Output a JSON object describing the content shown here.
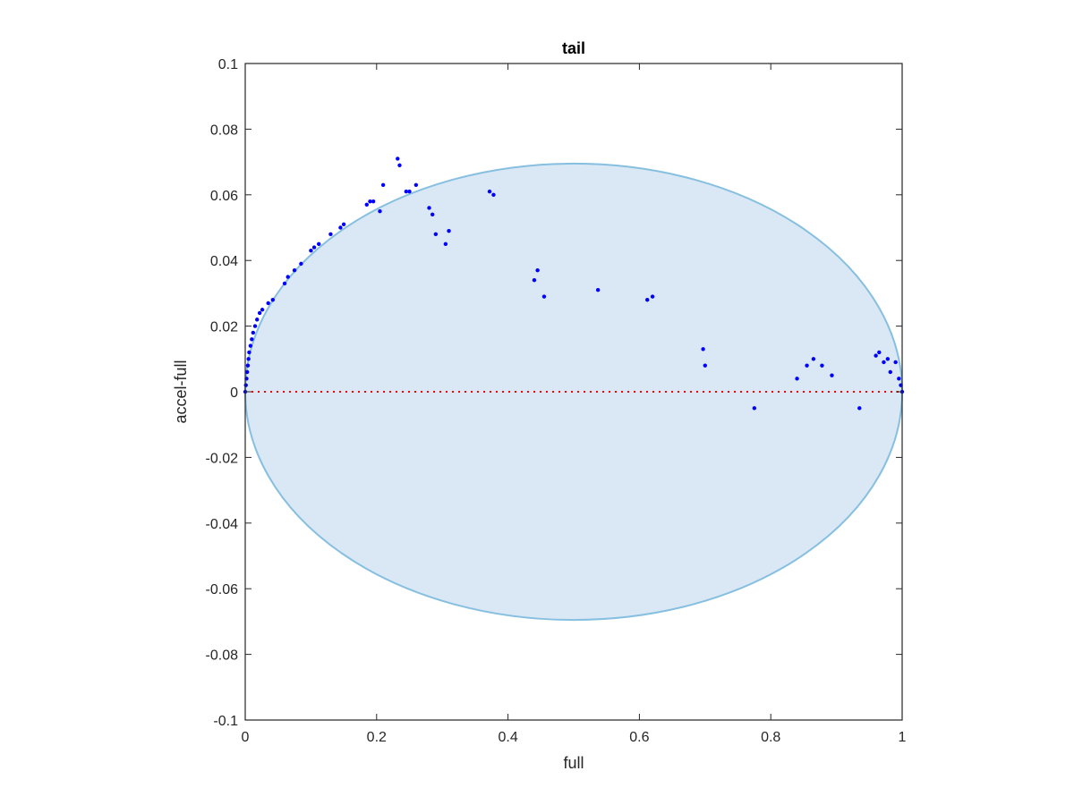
{
  "chart_data": {
    "type": "scatter",
    "title": "tail",
    "xlabel": "full",
    "ylabel": "accel-full",
    "xlim": [
      0,
      1
    ],
    "ylim": [
      -0.1,
      0.1
    ],
    "xticks": [
      0,
      0.2,
      0.4,
      0.6,
      0.8,
      1
    ],
    "xtick_labels": [
      "0",
      "0.2",
      "0.4",
      "0.6",
      "0.8",
      "1"
    ],
    "yticks": [
      -0.1,
      -0.08,
      -0.06,
      -0.04,
      -0.02,
      0,
      0.02,
      0.04,
      0.06,
      0.08,
      0.1
    ],
    "ytick_labels": [
      "-0.1",
      "-0.08",
      "-0.06",
      "-0.04",
      "-0.02",
      "0",
      "0.02",
      "0.04",
      "0.06",
      "0.08",
      "0.1"
    ],
    "grid": false,
    "reference_line": {
      "y": 0,
      "style": "dotted",
      "color": "#ff0000"
    },
    "region": {
      "shape": "ellipse",
      "center": [
        0.5,
        0.0
      ],
      "radii": [
        0.5,
        0.0695
      ],
      "fill": "#d9e8f4",
      "stroke": "#86bfe0"
    },
    "point_color": "#0000ff",
    "points": [
      [
        0.0,
        0.0
      ],
      [
        0.001,
        0.002
      ],
      [
        0.002,
        0.004
      ],
      [
        0.003,
        0.006
      ],
      [
        0.004,
        0.008
      ],
      [
        0.005,
        0.01
      ],
      [
        0.006,
        0.012
      ],
      [
        0.008,
        0.014
      ],
      [
        0.01,
        0.016
      ],
      [
        0.012,
        0.018
      ],
      [
        0.015,
        0.02
      ],
      [
        0.018,
        0.022
      ],
      [
        0.022,
        0.024
      ],
      [
        0.026,
        0.025
      ],
      [
        0.035,
        0.027
      ],
      [
        0.042,
        0.028
      ],
      [
        0.06,
        0.033
      ],
      [
        0.065,
        0.035
      ],
      [
        0.075,
        0.037
      ],
      [
        0.085,
        0.039
      ],
      [
        0.1,
        0.043
      ],
      [
        0.105,
        0.044
      ],
      [
        0.112,
        0.045
      ],
      [
        0.13,
        0.048
      ],
      [
        0.145,
        0.05
      ],
      [
        0.15,
        0.051
      ],
      [
        0.185,
        0.057
      ],
      [
        0.19,
        0.058
      ],
      [
        0.195,
        0.058
      ],
      [
        0.205,
        0.055
      ],
      [
        0.21,
        0.063
      ],
      [
        0.232,
        0.071
      ],
      [
        0.235,
        0.069
      ],
      [
        0.245,
        0.061
      ],
      [
        0.25,
        0.061
      ],
      [
        0.26,
        0.063
      ],
      [
        0.28,
        0.056
      ],
      [
        0.285,
        0.054
      ],
      [
        0.29,
        0.048
      ],
      [
        0.305,
        0.045
      ],
      [
        0.31,
        0.049
      ],
      [
        0.372,
        0.061
      ],
      [
        0.378,
        0.06
      ],
      [
        0.44,
        0.034
      ],
      [
        0.445,
        0.037
      ],
      [
        0.455,
        0.029
      ],
      [
        0.537,
        0.031
      ],
      [
        0.612,
        0.028
      ],
      [
        0.62,
        0.029
      ],
      [
        0.697,
        0.013
      ],
      [
        0.7,
        0.008
      ],
      [
        0.775,
        -0.005
      ],
      [
        0.84,
        0.004
      ],
      [
        0.855,
        0.008
      ],
      [
        0.865,
        0.01
      ],
      [
        0.878,
        0.008
      ],
      [
        0.893,
        0.005
      ],
      [
        0.935,
        -0.005
      ],
      [
        0.96,
        0.011
      ],
      [
        0.965,
        0.012
      ],
      [
        0.972,
        0.009
      ],
      [
        0.978,
        0.01
      ],
      [
        0.982,
        0.006
      ],
      [
        0.99,
        0.009
      ],
      [
        0.995,
        0.004
      ],
      [
        0.998,
        0.002
      ],
      [
        1.0,
        0.0
      ]
    ]
  }
}
